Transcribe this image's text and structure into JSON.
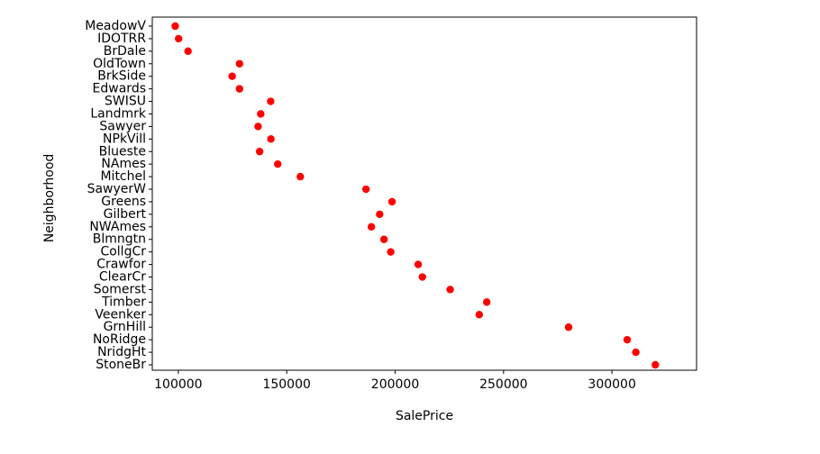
{
  "chart_data": {
    "type": "scatter",
    "title": "",
    "xlabel": "SalePrice",
    "ylabel": "Neighborhood",
    "xlim": [
      88000,
      339000
    ],
    "x_ticks": [
      100000,
      150000,
      200000,
      250000,
      300000
    ],
    "x_tick_labels": [
      "100000",
      "150000",
      "200000",
      "250000",
      "300000"
    ],
    "marker_color": "#ff0000",
    "grid": false,
    "categories": [
      "MeadowV",
      "IDOTRR",
      "BrDale",
      "OldTown",
      "BrkSide",
      "Edwards",
      "SWISU",
      "Landmrk",
      "Sawyer",
      "NPkVill",
      "Blueste",
      "NAmes",
      "Mitchel",
      "SawyerW",
      "Greens",
      "Gilbert",
      "NWAmes",
      "Blmngtn",
      "CollgCr",
      "Crawfor",
      "ClearCr",
      "Somerst",
      "Timber",
      "Veenker",
      "GrnHill",
      "NoRidge",
      "NridgHt",
      "StoneBr"
    ],
    "values": [
      98576,
      100124,
      104494,
      128225,
      124834,
      128220,
      142592,
      138000,
      136793,
      142695,
      137500,
      145847,
      156270,
      186556,
      198563,
      192854,
      189050,
      194871,
      197966,
      210625,
      212565,
      225380,
      242247,
      238773,
      280000,
      307000,
      311000,
      320000
    ]
  }
}
